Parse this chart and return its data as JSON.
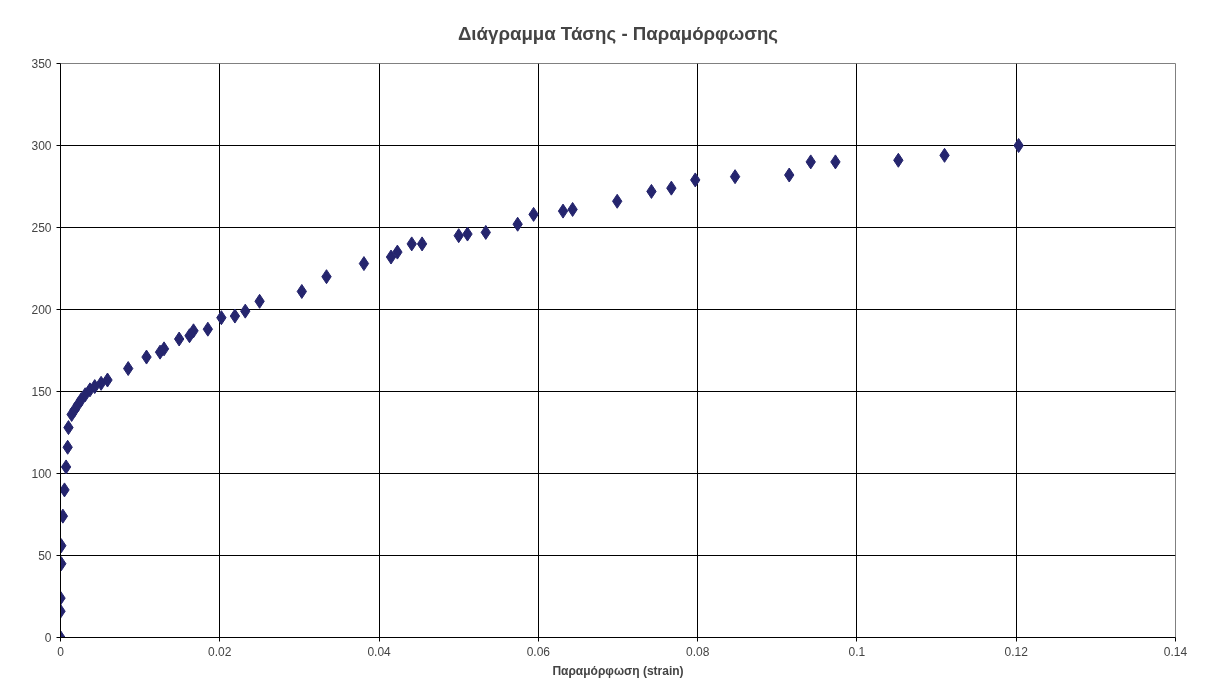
{
  "chart_data": {
    "type": "scatter",
    "title": "Διάγραμμα Τάσης - Παραμόρφωσης",
    "xlabel": "Παραμόρφωση (strain)",
    "x": [
      0,
      0,
      0,
      0.0001,
      0.0001,
      0.0003,
      0.0005,
      0.0007,
      0.0009,
      0.001,
      0.0014,
      0.0018,
      0.0022,
      0.0026,
      0.0031,
      0.0037,
      0.0043,
      0.0051,
      0.0059,
      0.0085,
      0.0108,
      0.0125,
      0.013,
      0.0149,
      0.0162,
      0.0167,
      0.0185,
      0.0202,
      0.0219,
      0.0232,
      0.025,
      0.0303,
      0.0334,
      0.0381,
      0.0415,
      0.0423,
      0.0441,
      0.0454,
      0.05,
      0.0511,
      0.0534,
      0.0574,
      0.0594,
      0.0631,
      0.0643,
      0.0699,
      0.0742,
      0.0767,
      0.0797,
      0.0847,
      0.0915,
      0.0942,
      0.0973,
      0.1052,
      0.111,
      0.1203
    ],
    "series": [
      {
        "color": "#25256e",
        "values": [
          0,
          16,
          24,
          45,
          56,
          74,
          90,
          104,
          116,
          128,
          136,
          139,
          142,
          145,
          148,
          151,
          153,
          155,
          157,
          164,
          171,
          174,
          176,
          182,
          184,
          187,
          188,
          195,
          196,
          199,
          205,
          211,
          220,
          228,
          232,
          235,
          240,
          240,
          245,
          246,
          247,
          252,
          258,
          260,
          261,
          266,
          272,
          274,
          279,
          281,
          282,
          290,
          290,
          291,
          294,
          300
        ]
      }
    ],
    "xlim": [
      0,
      0.14
    ],
    "xticks": [
      0,
      0.02,
      0.04,
      0.06,
      0.08,
      0.1,
      0.12,
      0.14
    ],
    "ylim": [
      0,
      350
    ],
    "yticks": [
      0,
      50,
      100,
      150,
      200,
      250,
      300,
      350
    ],
    "grid": true,
    "marker": "diamond"
  }
}
